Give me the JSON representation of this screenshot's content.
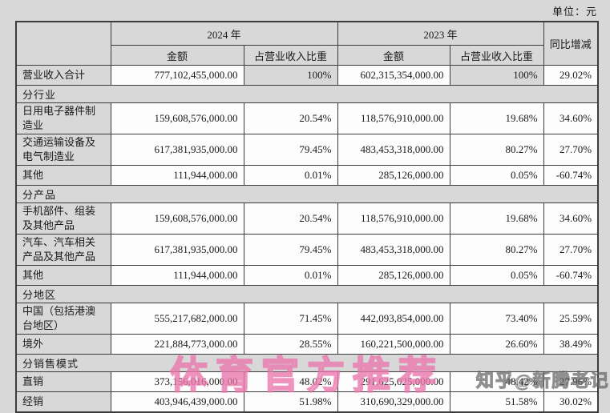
{
  "unit_label": "单位：元",
  "watermarks": {
    "center": "体育官方推荐",
    "zhihu": "知乎@新腾老记"
  },
  "table": {
    "header": {
      "year_2024": "2024 年",
      "year_2023": "2023 年",
      "amount_label": "金额",
      "ratio_label": "占营业收入比重",
      "yoy_label": "同比增减"
    },
    "rows": [
      {
        "type": "data",
        "label": "营业收入合计",
        "amount_2024": "777,102,455,000.00",
        "ratio_2024": "100%",
        "amount_2023": "602,315,354,000.00",
        "ratio_2023": "100%",
        "yoy": "29.02%",
        "highlight_ratio": true,
        "tall": false
      },
      {
        "type": "section",
        "label": "分行业"
      },
      {
        "type": "data",
        "label": "日用电子器件制造业",
        "amount_2024": "159,608,576,000.00",
        "ratio_2024": "20.54%",
        "amount_2023": "118,576,910,000.00",
        "ratio_2023": "19.68%",
        "yoy": "34.60%",
        "highlight_ratio": false,
        "tall": true
      },
      {
        "type": "data",
        "label": "交通运输设备及电气制造业",
        "amount_2024": "617,381,935,000.00",
        "ratio_2024": "79.45%",
        "amount_2023": "483,453,318,000.00",
        "ratio_2023": "80.27%",
        "yoy": "27.70%",
        "highlight_ratio": false,
        "tall": true
      },
      {
        "type": "data",
        "label": "其他",
        "amount_2024": "111,944,000.00",
        "ratio_2024": "0.01%",
        "amount_2023": "285,126,000.00",
        "ratio_2023": "0.05%",
        "yoy": "-60.74%",
        "highlight_ratio": false,
        "tall": false
      },
      {
        "type": "section",
        "label": "分产品"
      },
      {
        "type": "data",
        "label": "手机部件、组装及其他产品",
        "amount_2024": "159,608,576,000.00",
        "ratio_2024": "20.54%",
        "amount_2023": "118,576,910,000.00",
        "ratio_2023": "19.68%",
        "yoy": "34.60%",
        "highlight_ratio": false,
        "tall": true
      },
      {
        "type": "data",
        "label": "汽车、汽车相关产品及其他产品",
        "amount_2024": "617,381,935,000.00",
        "ratio_2024": "79.45%",
        "amount_2023": "483,453,318,000.00",
        "ratio_2023": "80.27%",
        "yoy": "27.70%",
        "highlight_ratio": false,
        "tall": true
      },
      {
        "type": "data",
        "label": "其他",
        "amount_2024": "111,944,000.00",
        "ratio_2024": "0.01%",
        "amount_2023": "285,126,000.00",
        "ratio_2023": "0.05%",
        "yoy": "-60.74%",
        "highlight_ratio": false,
        "tall": false
      },
      {
        "type": "section",
        "label": "分地区"
      },
      {
        "type": "data",
        "label": "中国（包括港澳台地区）",
        "amount_2024": "555,217,682,000.00",
        "ratio_2024": "71.45%",
        "amount_2023": "442,093,854,000.00",
        "ratio_2023": "73.40%",
        "yoy": "25.59%",
        "highlight_ratio": false,
        "tall": true
      },
      {
        "type": "data",
        "label": "境外",
        "amount_2024": "221,884,773,000.00",
        "ratio_2024": "28.55%",
        "amount_2023": "160,221,500,000.00",
        "ratio_2023": "26.60%",
        "yoy": "38.49%",
        "highlight_ratio": false,
        "tall": false
      },
      {
        "type": "section",
        "label": "分销售模式"
      },
      {
        "type": "data",
        "label": "直销",
        "amount_2024": "373,156,016,000.00",
        "ratio_2024": "48.02%",
        "amount_2023": "291,625,025,000.00",
        "ratio_2023": "48.42%",
        "yoy": "27.96%",
        "highlight_ratio": false,
        "tall": false
      },
      {
        "type": "data",
        "label": "经销",
        "amount_2024": "403,946,439,000.00",
        "ratio_2024": "51.98%",
        "amount_2023": "310,690,329,000.00",
        "ratio_2023": "51.58%",
        "yoy": "30.02%",
        "highlight_ratio": false,
        "tall": false
      }
    ]
  }
}
